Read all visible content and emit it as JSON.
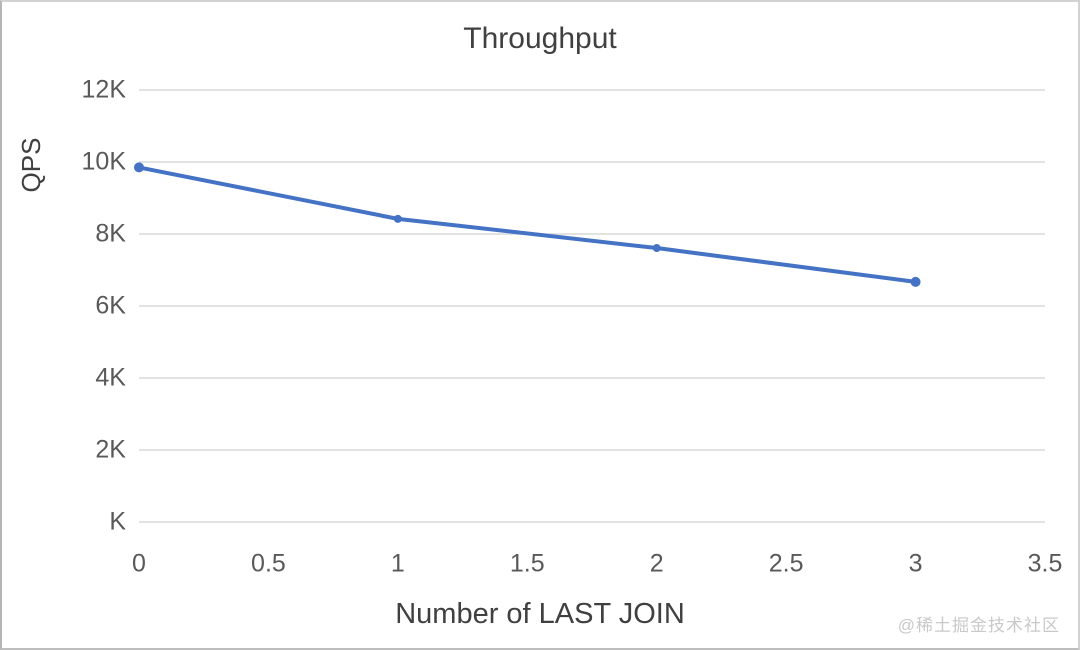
{
  "page": {
    "watermark": "@稀土掘金技术社区"
  },
  "chart_data": {
    "type": "line",
    "title": "Throughput",
    "xlabel": "Number of LAST JOIN",
    "ylabel": "QPS",
    "x": [
      0,
      1,
      2,
      3
    ],
    "values": [
      9850,
      8420,
      7610,
      6670
    ],
    "xlim": [
      0,
      3.5
    ],
    "ylim": [
      0,
      12000
    ],
    "xticks": {
      "values": [
        0,
        0.5,
        1,
        1.5,
        2,
        2.5,
        3,
        3.5
      ],
      "labels": [
        "0",
        "0.5",
        "1",
        "1.5",
        "2",
        "2.5",
        "3",
        "3.5"
      ]
    },
    "yticks": {
      "values": [
        0,
        2000,
        4000,
        6000,
        8000,
        10000,
        12000
      ],
      "labels": [
        "K",
        "2K",
        "4K",
        "6K",
        "8K",
        "10K",
        "12K"
      ]
    },
    "grid": "horizontal",
    "legend": "none",
    "line_color": "#4472C4",
    "grid_color": "#d9d9d9",
    "marker": "circle"
  }
}
